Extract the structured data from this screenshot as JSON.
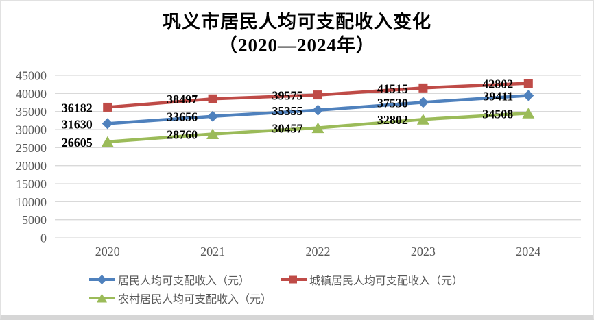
{
  "chart_data": {
    "type": "line",
    "title": "巩义市居民人均可支配收入变化",
    "subtitle": "（2020—2024年）",
    "categories": [
      "2020",
      "2021",
      "2022",
      "2023",
      "2024"
    ],
    "series": [
      {
        "name": "居民人均可支配收入（元）",
        "values": [
          31630,
          33656,
          35355,
          37530,
          39411
        ],
        "color": "#4F81BD",
        "marker": "diamond"
      },
      {
        "name": "城镇居民人均可支配收入（元）",
        "values": [
          36182,
          38497,
          39575,
          41515,
          42802
        ],
        "color": "#BF4B47",
        "marker": "square"
      },
      {
        "name": "农村居民人均可支配收入（元）",
        "values": [
          26605,
          28760,
          30457,
          32802,
          34508
        ],
        "color": "#9BBB59",
        "marker": "triangle"
      }
    ],
    "ylim": [
      0,
      45000
    ],
    "ytick_step": 5000,
    "yticks": [
      "0",
      "5000",
      "10000",
      "15000",
      "20000",
      "25000",
      "30000",
      "35000",
      "40000",
      "45000"
    ],
    "grid": true,
    "data_labels": true,
    "legend_position": "bottom",
    "style": {
      "grid_color": "#D9D9D9",
      "axis_label_color": "#595959",
      "title_color": "#000000",
      "data_label_color": "#000000",
      "legend_text_color": "#595959",
      "frame_border_color": "#E1E1E1",
      "frame_bottom_color": "#D6D6D6",
      "background": "#FFFFFF"
    }
  }
}
